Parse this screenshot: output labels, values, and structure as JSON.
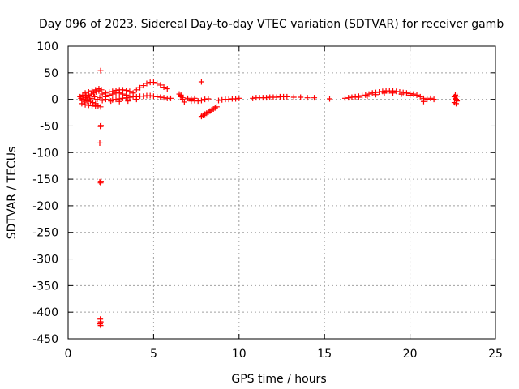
{
  "chart_data": {
    "type": "scatter",
    "title": "Day 096 of 2023, Sidereal Day-to-day VTEC variation (SDTVAR) for receiver gamb",
    "xlabel": "GPS time / hours",
    "ylabel": "SDTVAR / TECUs",
    "xlim": [
      0,
      25
    ],
    "ylim": [
      -450,
      100
    ],
    "x_ticks": [
      0,
      5,
      10,
      15,
      20,
      25
    ],
    "y_ticks": [
      100,
      50,
      0,
      -50,
      -100,
      -150,
      -200,
      -250,
      -300,
      -350,
      -400,
      -450
    ],
    "grid": true,
    "marker": "+",
    "color": "#ff0000",
    "series": [
      {
        "name": "SDTVAR",
        "points": [
          [
            0.7,
            5
          ],
          [
            0.75,
            2
          ],
          [
            0.8,
            -2
          ],
          [
            0.85,
            8
          ],
          [
            0.9,
            0
          ],
          [
            0.95,
            -5
          ],
          [
            1.0,
            3
          ],
          [
            1.05,
            6
          ],
          [
            1.1,
            -3
          ],
          [
            1.15,
            4
          ],
          [
            1.2,
            8
          ],
          [
            1.25,
            1
          ],
          [
            1.3,
            -4
          ],
          [
            1.35,
            10
          ],
          [
            1.4,
            2
          ],
          [
            1.45,
            -6
          ],
          [
            1.5,
            12
          ],
          [
            1.55,
            5
          ],
          [
            1.6,
            -8
          ],
          [
            1.65,
            14
          ],
          [
            1.7,
            0
          ],
          [
            1.75,
            -12
          ],
          [
            1.8,
            16
          ],
          [
            1.85,
            3
          ],
          [
            1.9,
            -14
          ],
          [
            1.95,
            18
          ],
          [
            1.0,
            12
          ],
          [
            1.2,
            14
          ],
          [
            1.4,
            16
          ],
          [
            1.6,
            18
          ],
          [
            1.8,
            20
          ],
          [
            0.8,
            -8
          ],
          [
            1.0,
            -10
          ],
          [
            1.2,
            -11
          ],
          [
            1.4,
            -12
          ],
          [
            1.6,
            -13
          ],
          [
            1.9,
            54
          ],
          [
            1.88,
            -50
          ],
          [
            1.9,
            -51
          ],
          [
            1.92,
            -49
          ],
          [
            1.85,
            -82
          ],
          [
            1.85,
            -155
          ],
          [
            1.9,
            -157
          ],
          [
            1.92,
            -154
          ],
          [
            1.88,
            -413
          ],
          [
            1.9,
            -418
          ],
          [
            1.87,
            -422
          ],
          [
            1.9,
            -425
          ],
          [
            1.92,
            -420
          ],
          [
            2.0,
            -2
          ],
          [
            2.2,
            0
          ],
          [
            2.4,
            -1
          ],
          [
            2.6,
            -1
          ],
          [
            2.8,
            0
          ],
          [
            3.0,
            1
          ],
          [
            3.2,
            2
          ],
          [
            3.4,
            3
          ],
          [
            3.6,
            4
          ],
          [
            3.8,
            5
          ],
          [
            4.0,
            5
          ],
          [
            4.2,
            6
          ],
          [
            4.4,
            6
          ],
          [
            4.6,
            7
          ],
          [
            4.8,
            7
          ],
          [
            5.0,
            6
          ],
          [
            5.2,
            5
          ],
          [
            5.4,
            4
          ],
          [
            5.6,
            3
          ],
          [
            5.8,
            2
          ],
          [
            6.0,
            2
          ],
          [
            2.0,
            10
          ],
          [
            2.2,
            12
          ],
          [
            2.4,
            14
          ],
          [
            2.6,
            15
          ],
          [
            2.8,
            17
          ],
          [
            3.0,
            18
          ],
          [
            3.2,
            18
          ],
          [
            3.4,
            17
          ],
          [
            3.6,
            15
          ],
          [
            3.8,
            12
          ],
          [
            2.2,
            5
          ],
          [
            2.4,
            8
          ],
          [
            2.6,
            10
          ],
          [
            2.8,
            12
          ],
          [
            3.0,
            12
          ],
          [
            3.2,
            10
          ],
          [
            3.4,
            8
          ],
          [
            4.0,
            18
          ],
          [
            4.2,
            22
          ],
          [
            4.4,
            26
          ],
          [
            4.6,
            30
          ],
          [
            4.8,
            32
          ],
          [
            5.0,
            32
          ],
          [
            5.2,
            30
          ],
          [
            5.4,
            27
          ],
          [
            5.6,
            23
          ],
          [
            5.8,
            20
          ],
          [
            2.5,
            -3
          ],
          [
            3.0,
            -4
          ],
          [
            3.5,
            -3
          ],
          [
            4.0,
            0
          ],
          [
            6.5,
            10
          ],
          [
            6.6,
            5
          ],
          [
            6.7,
            0
          ],
          [
            6.8,
            -5
          ],
          [
            6.6,
            8
          ],
          [
            6.7,
            3
          ],
          [
            7.2,
            0
          ],
          [
            7.4,
            -2
          ],
          [
            7.6,
            -3
          ],
          [
            7.8,
            -2
          ],
          [
            8.0,
            0
          ],
          [
            8.2,
            1
          ],
          [
            7.2,
            -3
          ],
          [
            7.4,
            2
          ],
          [
            7.0,
            2
          ],
          [
            7.8,
            33
          ],
          [
            7.8,
            -32
          ],
          [
            7.9,
            -30
          ],
          [
            8.0,
            -28
          ],
          [
            8.1,
            -26
          ],
          [
            8.2,
            -24
          ],
          [
            8.3,
            -22
          ],
          [
            8.4,
            -20
          ],
          [
            8.5,
            -18
          ],
          [
            8.6,
            -16
          ],
          [
            8.7,
            -14
          ],
          [
            8.8,
            -2
          ],
          [
            9.0,
            -1
          ],
          [
            9.2,
            0
          ],
          [
            9.4,
            0
          ],
          [
            9.6,
            1
          ],
          [
            9.8,
            1
          ],
          [
            10.0,
            2
          ],
          [
            10.8,
            2
          ],
          [
            11.0,
            3
          ],
          [
            11.2,
            3
          ],
          [
            11.4,
            3
          ],
          [
            11.6,
            3
          ],
          [
            11.8,
            4
          ],
          [
            12.0,
            4
          ],
          [
            12.2,
            4
          ],
          [
            12.4,
            5
          ],
          [
            12.6,
            5
          ],
          [
            12.8,
            5
          ],
          [
            13.2,
            4
          ],
          [
            13.6,
            4
          ],
          [
            14.0,
            3
          ],
          [
            14.4,
            3
          ],
          [
            15.3,
            1
          ],
          [
            16.2,
            2
          ],
          [
            16.4,
            3
          ],
          [
            16.6,
            4
          ],
          [
            16.8,
            5
          ],
          [
            17.0,
            6
          ],
          [
            17.2,
            7
          ],
          [
            17.4,
            8
          ],
          [
            17.6,
            10
          ],
          [
            17.8,
            12
          ],
          [
            18.0,
            13
          ],
          [
            18.2,
            14
          ],
          [
            18.4,
            15
          ],
          [
            18.6,
            16
          ],
          [
            18.8,
            16
          ],
          [
            19.0,
            16
          ],
          [
            19.2,
            15
          ],
          [
            19.4,
            14
          ],
          [
            19.6,
            13
          ],
          [
            19.8,
            12
          ],
          [
            20.0,
            11
          ],
          [
            20.2,
            10
          ],
          [
            20.4,
            8
          ],
          [
            20.6,
            5
          ],
          [
            20.8,
            2
          ],
          [
            17.0,
            4
          ],
          [
            17.5,
            6
          ],
          [
            18.0,
            9
          ],
          [
            18.5,
            12
          ],
          [
            19.0,
            12
          ],
          [
            19.5,
            10
          ],
          [
            20.0,
            8
          ],
          [
            20.8,
            -4
          ],
          [
            21.0,
            0
          ],
          [
            21.2,
            2
          ],
          [
            21.4,
            0
          ],
          [
            22.6,
            5
          ],
          [
            22.65,
            2
          ],
          [
            22.7,
            0
          ],
          [
            22.75,
            -3
          ],
          [
            22.6,
            -6
          ],
          [
            22.7,
            -8
          ],
          [
            22.65,
            8
          ],
          [
            22.75,
            6
          ]
        ]
      }
    ]
  }
}
